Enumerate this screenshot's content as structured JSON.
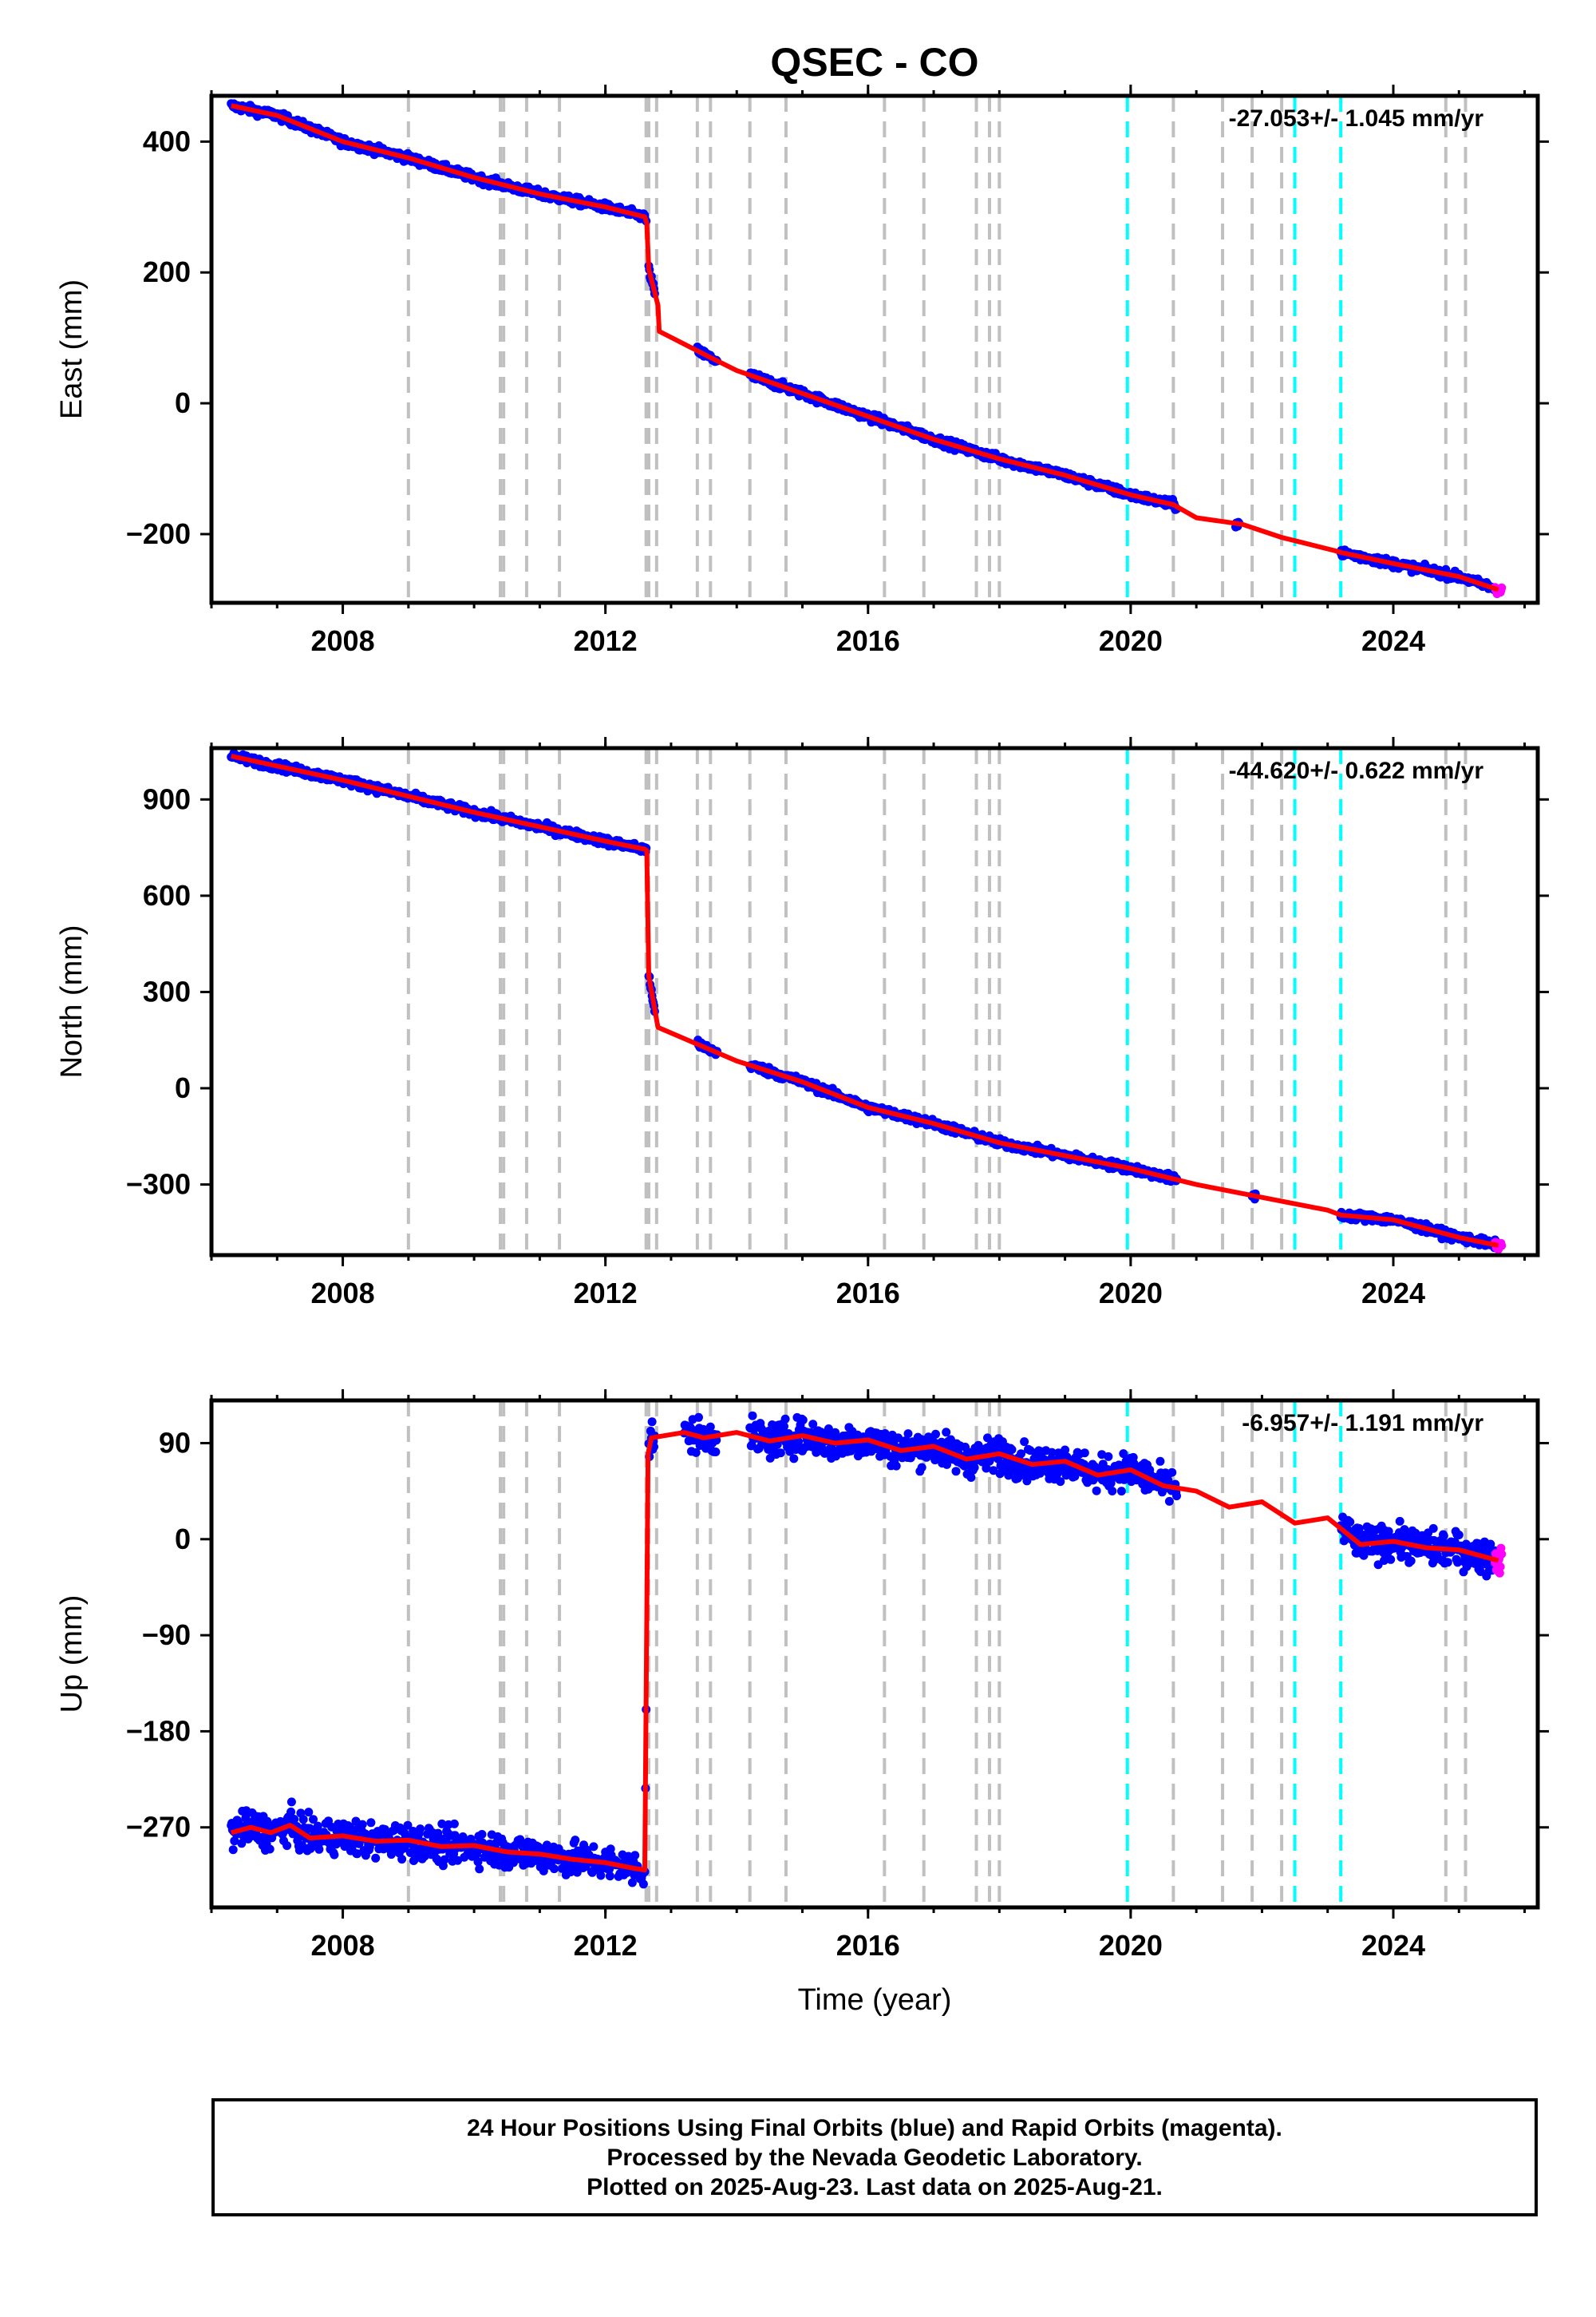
{
  "title": "QSEC - CO",
  "xlabel": "Time (year)",
  "colors": {
    "final_orbits": "#0000ff",
    "rapid_orbits": "#ff00ff",
    "model": "#ff0000",
    "gray_marker": "#c0c0c0",
    "cyan_marker": "#00ffff"
  },
  "footer": {
    "line1": "24 Hour Positions Using Final Orbits (blue) and Rapid Orbits (magenta).",
    "line2": "Processed by the Nevada Geodetic Laboratory.",
    "line3": "Plotted on 2025-Aug-23. Last data on 2025-Aug-21."
  },
  "chart_data": [
    {
      "type": "scatter",
      "ylabel": "East (mm)",
      "rate_label": "-27.053+/- 1.045 mm/yr",
      "xlim": [
        2006.0,
        2026.2
      ],
      "ylim": [
        -305,
        470
      ],
      "xticks": [
        2008,
        2012,
        2016,
        2020,
        2024
      ],
      "yticks": [
        -200,
        0,
        200,
        400
      ],
      "ytick_labels": [
        "−200",
        "0",
        "200",
        "400"
      ],
      "gray_markers": [
        2009.0,
        2010.4,
        2010.45,
        2010.8,
        2011.3,
        2012.62,
        2012.66,
        2012.78,
        2013.4,
        2013.6,
        2014.2,
        2014.75,
        2016.25,
        2016.85,
        2017.65,
        2017.85,
        2018.0,
        2020.65,
        2021.4,
        2021.85,
        2022.3,
        2024.8,
        2025.1
      ],
      "cyan_markers": [
        2019.95,
        2022.5,
        2023.2
      ],
      "model": [
        [
          2006.3,
          455
        ],
        [
          2007.0,
          440
        ],
        [
          2008.0,
          400
        ],
        [
          2009.0,
          375
        ],
        [
          2010.0,
          345
        ],
        [
          2011.0,
          320
        ],
        [
          2012.0,
          300
        ],
        [
          2012.6,
          285
        ],
        [
          2012.63,
          275
        ],
        [
          2012.66,
          205
        ],
        [
          2012.8,
          150
        ],
        [
          2012.82,
          110
        ],
        [
          2013.5,
          75
        ],
        [
          2014.0,
          50
        ],
        [
          2015.0,
          15
        ],
        [
          2016.0,
          -20
        ],
        [
          2017.0,
          -55
        ],
        [
          2018.0,
          -85
        ],
        [
          2019.0,
          -110
        ],
        [
          2020.0,
          -140
        ],
        [
          2020.65,
          -155
        ],
        [
          2021.0,
          -175
        ],
        [
          2021.7,
          -185
        ],
        [
          2022.3,
          -205
        ],
        [
          2022.5,
          -210
        ],
        [
          2023.1,
          -225
        ],
        [
          2023.2,
          -228
        ],
        [
          2024.0,
          -245
        ],
        [
          2025.0,
          -265
        ],
        [
          2025.6,
          -285
        ]
      ],
      "final_segments": [
        [
          2006.3,
          2012.62
        ],
        [
          2012.66,
          2012.75
        ],
        [
          2013.4,
          2013.7
        ],
        [
          2014.2,
          2020.7
        ],
        [
          2021.6,
          2021.65
        ],
        [
          2023.2,
          2025.55
        ]
      ],
      "rapid_segments": [
        [
          2025.55,
          2025.65
        ]
      ]
    },
    {
      "type": "scatter",
      "ylabel": "North (mm)",
      "rate_label": "-44.620+/- 0.622 mm/yr",
      "xlim": [
        2006.0,
        2026.2
      ],
      "ylim": [
        -520,
        1060
      ],
      "xticks": [
        2008,
        2012,
        2016,
        2020,
        2024
      ],
      "yticks": [
        -300,
        0,
        300,
        600,
        900
      ],
      "ytick_labels": [
        "−300",
        "0",
        "300",
        "600",
        "900"
      ],
      "gray_markers": [
        2009.0,
        2010.4,
        2010.45,
        2010.8,
        2011.3,
        2012.62,
        2012.66,
        2012.78,
        2013.4,
        2013.6,
        2014.2,
        2014.75,
        2016.25,
        2016.85,
        2017.65,
        2017.85,
        2018.0,
        2020.65,
        2021.4,
        2021.85,
        2022.3,
        2024.8,
        2025.1
      ],
      "cyan_markers": [
        2019.95,
        2022.5,
        2023.2
      ],
      "model": [
        [
          2006.3,
          1035
        ],
        [
          2008.0,
          960
        ],
        [
          2010.0,
          860
        ],
        [
          2012.0,
          770
        ],
        [
          2012.6,
          745
        ],
        [
          2012.63,
          740
        ],
        [
          2012.66,
          350
        ],
        [
          2012.8,
          190
        ],
        [
          2014.0,
          85
        ],
        [
          2015.0,
          20
        ],
        [
          2016.0,
          -60
        ],
        [
          2017.0,
          -110
        ],
        [
          2018.0,
          -170
        ],
        [
          2019.0,
          -210
        ],
        [
          2020.0,
          -250
        ],
        [
          2021.0,
          -300
        ],
        [
          2022.0,
          -340
        ],
        [
          2023.0,
          -380
        ],
        [
          2023.2,
          -395
        ],
        [
          2024.0,
          -410
        ],
        [
          2025.0,
          -465
        ],
        [
          2025.6,
          -490
        ]
      ],
      "final_segments": [
        [
          2006.3,
          2012.62
        ],
        [
          2012.66,
          2012.75
        ],
        [
          2013.4,
          2013.7
        ],
        [
          2014.2,
          2020.7
        ],
        [
          2021.85,
          2021.9
        ],
        [
          2023.2,
          2025.55
        ]
      ],
      "rapid_segments": [
        [
          2025.55,
          2025.65
        ]
      ]
    },
    {
      "type": "scatter",
      "ylabel": "Up (mm)",
      "rate_label": "-6.957+/- 1.191 mm/yr",
      "xlim": [
        2006.0,
        2026.2
      ],
      "ylim": [
        -345,
        130
      ],
      "xticks": [
        2008,
        2012,
        2016,
        2020,
        2024
      ],
      "yticks": [
        -270,
        -180,
        -90,
        0,
        90
      ],
      "ytick_labels": [
        "−270",
        "−180",
        "−90",
        "0",
        "90"
      ],
      "gray_markers": [
        2009.0,
        2010.4,
        2010.45,
        2010.8,
        2011.3,
        2012.62,
        2012.66,
        2012.78,
        2013.4,
        2013.6,
        2014.2,
        2014.75,
        2016.25,
        2016.85,
        2017.65,
        2017.85,
        2018.0,
        2020.65,
        2021.4,
        2021.85,
        2022.3,
        2024.8,
        2025.1
      ],
      "cyan_markers": [
        2019.95,
        2022.5,
        2023.2
      ],
      "model": [
        [
          2006.3,
          -275
        ],
        [
          2006.6,
          -270
        ],
        [
          2006.9,
          -275
        ],
        [
          2007.2,
          -268
        ],
        [
          2007.5,
          -280
        ],
        [
          2008.0,
          -278
        ],
        [
          2008.5,
          -283
        ],
        [
          2009.0,
          -282
        ],
        [
          2009.5,
          -288
        ],
        [
          2010.0,
          -287
        ],
        [
          2010.5,
          -293
        ],
        [
          2011.0,
          -295
        ],
        [
          2011.5,
          -300
        ],
        [
          2012.0,
          -303
        ],
        [
          2012.4,
          -308
        ],
        [
          2012.6,
          -310
        ],
        [
          2012.65,
          80
        ],
        [
          2012.7,
          95
        ],
        [
          2013.2,
          100
        ],
        [
          2013.5,
          95
        ],
        [
          2014.0,
          100
        ],
        [
          2014.5,
          92
        ],
        [
          2015.0,
          97
        ],
        [
          2015.5,
          90
        ],
        [
          2016.0,
          93
        ],
        [
          2016.5,
          83
        ],
        [
          2017.0,
          87
        ],
        [
          2017.5,
          75
        ],
        [
          2018.0,
          80
        ],
        [
          2018.5,
          70
        ],
        [
          2019.0,
          73
        ],
        [
          2019.5,
          60
        ],
        [
          2020.0,
          65
        ],
        [
          2020.5,
          50
        ],
        [
          2021.0,
          45
        ],
        [
          2021.5,
          30
        ],
        [
          2022.0,
          35
        ],
        [
          2022.5,
          15
        ],
        [
          2023.0,
          20
        ],
        [
          2023.2,
          10
        ],
        [
          2023.5,
          -5
        ],
        [
          2024.0,
          -2
        ],
        [
          2024.5,
          -8
        ],
        [
          2025.0,
          -10
        ],
        [
          2025.6,
          -20
        ]
      ],
      "final_segments": [
        [
          2006.3,
          2012.62
        ],
        [
          2012.66,
          2012.75
        ],
        [
          2013.2,
          2013.7
        ],
        [
          2014.2,
          2020.7
        ],
        [
          2023.2,
          2025.55
        ]
      ],
      "rapid_segments": [
        [
          2025.55,
          2025.65
        ]
      ],
      "scatter_std": 8
    }
  ]
}
